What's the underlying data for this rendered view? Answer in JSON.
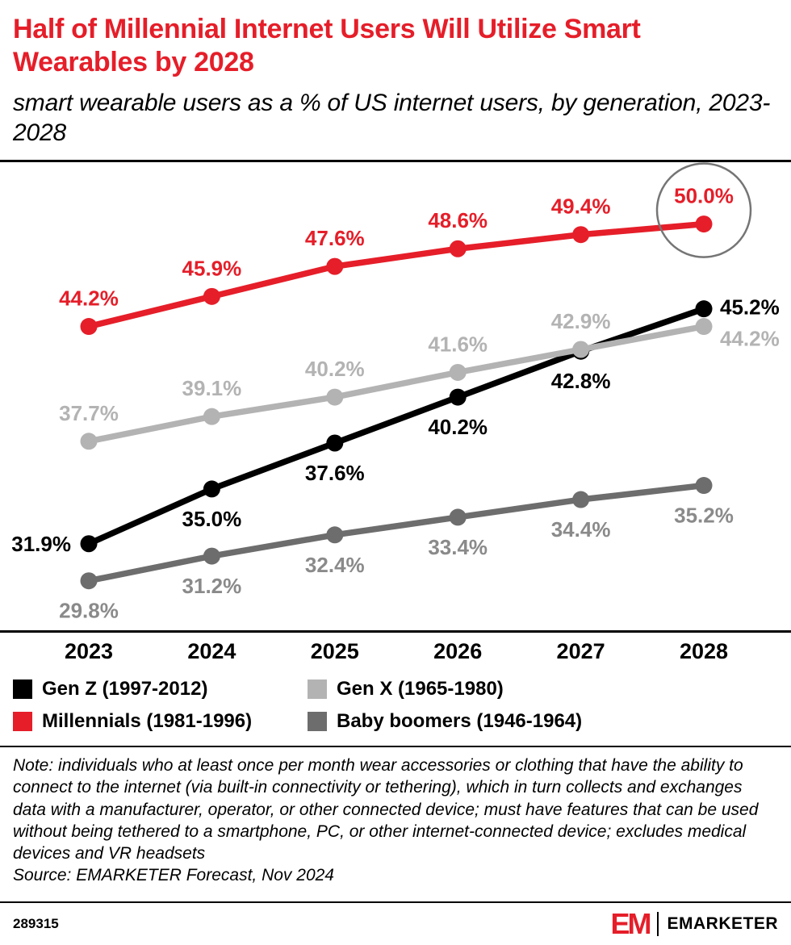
{
  "header": {
    "title": "Half of Millennial Internet Users Will Utilize Smart Wearables by 2028",
    "subtitle": "smart wearable users as a % of US internet users, by generation, 2023-2028"
  },
  "chart_data": {
    "type": "line",
    "title": "Half of Millennial Internet Users Will Utilize Smart Wearables by 2028",
    "xlabel": "",
    "ylabel": "smart wearable users as a % of US internet users",
    "x": [
      2023,
      2024,
      2025,
      2026,
      2027,
      2028
    ],
    "x_labels": [
      "2023",
      "2024",
      "2025",
      "2026",
      "2027",
      "2028"
    ],
    "ylim": [
      27,
      53.5
    ],
    "grid": false,
    "legend_position": "below",
    "series": [
      {
        "name": "Gen Z (1997-2012)",
        "color": "#000000",
        "label_color": "#000000",
        "values": [
          31.9,
          35.0,
          37.6,
          40.2,
          42.8,
          45.2
        ],
        "labels": [
          "31.9%",
          "35.0%",
          "37.6%",
          "40.2%",
          "42.8%",
          "45.2%"
        ],
        "label_side": "below",
        "label_overrides": {
          "0": "left",
          "5": "right"
        }
      },
      {
        "name": "Millennials (1981-1996)",
        "color": "#e51e29",
        "label_color": "#e51e29",
        "values": [
          44.2,
          45.9,
          47.6,
          48.6,
          49.4,
          50.0
        ],
        "labels": [
          "44.2%",
          "45.9%",
          "47.6%",
          "48.6%",
          "49.4%",
          "50.0%"
        ],
        "label_side": "above",
        "label_overrides": {}
      },
      {
        "name": "Gen X (1965-1980)",
        "color": "#b3b3b3",
        "label_color": "#b3b3b3",
        "values": [
          37.7,
          39.1,
          40.2,
          41.6,
          42.9,
          44.2
        ],
        "labels": [
          "37.7%",
          "39.1%",
          "40.2%",
          "41.6%",
          "42.9%",
          "44.2%"
        ],
        "label_side": "above",
        "label_overrides": {
          "5": "right-low"
        }
      },
      {
        "name": "Baby boomers (1946-1964)",
        "color": "#6d6d6d",
        "label_color": "#8a8a8a",
        "values": [
          29.8,
          31.2,
          32.4,
          33.4,
          34.4,
          35.2
        ],
        "labels": [
          "29.8%",
          "31.2%",
          "32.4%",
          "33.4%",
          "34.4%",
          "35.2%"
        ],
        "label_side": "below",
        "label_overrides": {}
      }
    ],
    "draw_order": [
      3,
      0,
      2,
      1
    ],
    "annotation": {
      "type": "circle-highlight",
      "series_index": 1,
      "point_index": 5,
      "highlight_label": "50.0%",
      "color": "#757575"
    }
  },
  "legend": {
    "items": [
      {
        "label": "Gen Z (1997-2012)",
        "color": "#000000"
      },
      {
        "label": "Gen X (1965-1980)",
        "color": "#b3b3b3"
      },
      {
        "label": "Millennials (1981-1996)",
        "color": "#e51e29"
      },
      {
        "label": "Baby boomers (1946-1964)",
        "color": "#6d6d6d"
      }
    ]
  },
  "note": {
    "text": "Note: individuals who at least once per month wear accessories or clothing that have the ability to connect to the internet (via built-in connectivity or tethering), which in turn collects and exchanges data with a manufacturer, operator, or other connected device; must have features that can be used without being tethered to a smartphone, PC, or other internet-connected device; excludes medical devices and VR headsets",
    "source": "Source: EMARKETER Forecast, Nov 2024"
  },
  "footer": {
    "chart_id": "289315",
    "logo_short": "EM",
    "brand": "EMARKETER"
  }
}
